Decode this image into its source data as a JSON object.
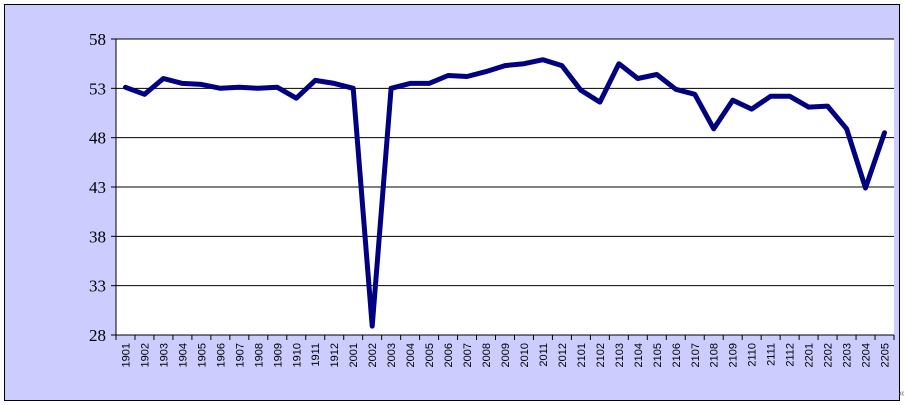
{
  "chart_data": {
    "type": "line",
    "title": "",
    "xlabel": "",
    "ylabel": "",
    "ylim": [
      28,
      58
    ],
    "yticks": [
      28,
      33,
      38,
      43,
      48,
      53,
      58
    ],
    "grid": "horizontal",
    "legend": "none",
    "colors": {
      "plot_bg": "#ffffff",
      "frame_bg": "#ccccff",
      "line": "#000080",
      "grid": "#000000"
    },
    "categories": [
      "1901",
      "1902",
      "1903",
      "1904",
      "1905",
      "1906",
      "1907",
      "1908",
      "1909",
      "1910",
      "1911",
      "1912",
      "2001",
      "2002",
      "2003",
      "2004",
      "2005",
      "2006",
      "2007",
      "2008",
      "2009",
      "2010",
      "2011",
      "2012",
      "2101",
      "2102",
      "2103",
      "2104",
      "2105",
      "2106",
      "2107",
      "2108",
      "2109",
      "2110",
      "2111",
      "2112",
      "2201",
      "2202",
      "2203",
      "2204",
      "2205"
    ],
    "series": [
      {
        "values": [
          53.1,
          52.4,
          54.0,
          53.5,
          53.4,
          53.0,
          53.1,
          53.0,
          53.1,
          52.0,
          53.8,
          53.5,
          53.0,
          28.9,
          53.0,
          53.5,
          53.5,
          54.3,
          54.2,
          54.7,
          55.3,
          55.5,
          55.9,
          55.3,
          52.8,
          51.6,
          55.5,
          54.0,
          54.4,
          52.9,
          52.4,
          48.9,
          51.8,
          50.9,
          52.2,
          52.2,
          51.1,
          51.2,
          48.9,
          42.9,
          48.5
        ]
      }
    ]
  },
  "corner_mark": "«"
}
